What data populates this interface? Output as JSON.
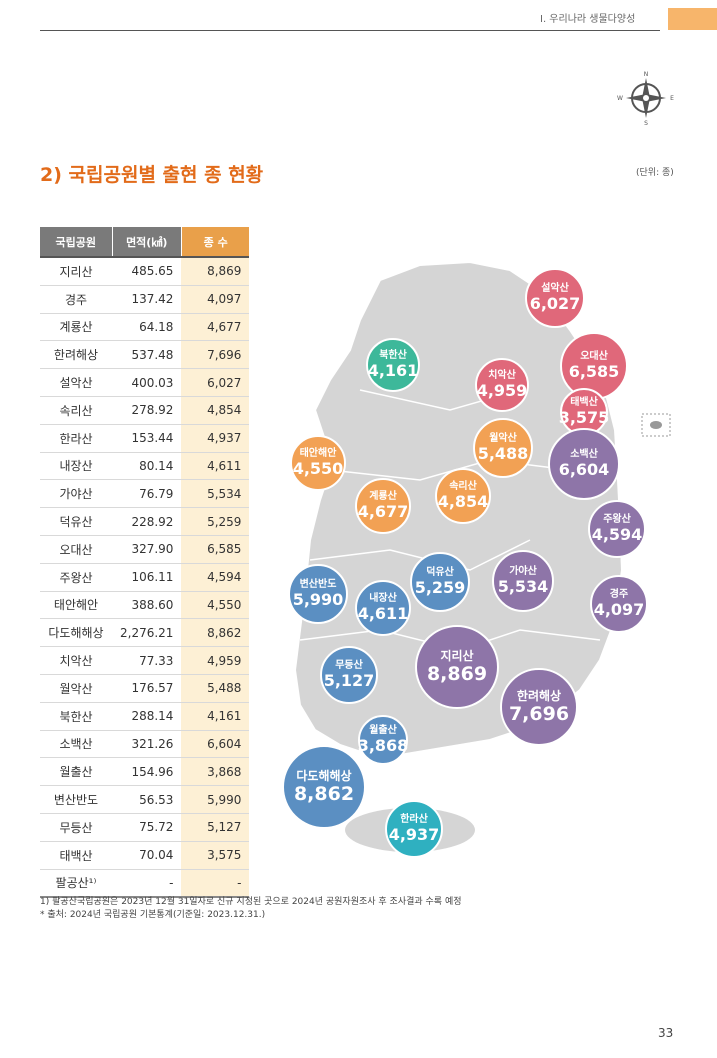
{
  "header": {
    "section": "Ⅰ. 우리나라 생물다양성"
  },
  "compass": {
    "n": "N",
    "s": "S",
    "e": "E",
    "w": "W"
  },
  "title": "2) 국립공원별 출현 종 현황",
  "unit": "(단위: 종)",
  "table": {
    "headers": [
      "국립공원",
      "면적(㎢)",
      "종 수"
    ],
    "rows": [
      {
        "name": "지리산",
        "area": "485.65",
        "species": "8,869"
      },
      {
        "name": "경주",
        "area": "137.42",
        "species": "4,097"
      },
      {
        "name": "계룡산",
        "area": "64.18",
        "species": "4,677"
      },
      {
        "name": "한려해상",
        "area": "537.48",
        "species": "7,696"
      },
      {
        "name": "설악산",
        "area": "400.03",
        "species": "6,027"
      },
      {
        "name": "속리산",
        "area": "278.92",
        "species": "4,854"
      },
      {
        "name": "한라산",
        "area": "153.44",
        "species": "4,937"
      },
      {
        "name": "내장산",
        "area": "80.14",
        "species": "4,611"
      },
      {
        "name": "가야산",
        "area": "76.79",
        "species": "5,534"
      },
      {
        "name": "덕유산",
        "area": "228.92",
        "species": "5,259"
      },
      {
        "name": "오대산",
        "area": "327.90",
        "species": "6,585"
      },
      {
        "name": "주왕산",
        "area": "106.11",
        "species": "4,594"
      },
      {
        "name": "태안해안",
        "area": "388.60",
        "species": "4,550"
      },
      {
        "name": "다도해해상",
        "area": "2,276.21",
        "species": "8,862"
      },
      {
        "name": "치악산",
        "area": "77.33",
        "species": "4,959"
      },
      {
        "name": "월악산",
        "area": "176.57",
        "species": "5,488"
      },
      {
        "name": "북한산",
        "area": "288.14",
        "species": "4,161"
      },
      {
        "name": "소백산",
        "area": "321.26",
        "species": "6,604"
      },
      {
        "name": "월출산",
        "area": "154.96",
        "species": "3,868"
      },
      {
        "name": "변산반도",
        "area": "56.53",
        "species": "5,990"
      },
      {
        "name": "무등산",
        "area": "75.72",
        "species": "5,127"
      },
      {
        "name": "태백산",
        "area": "70.04",
        "species": "3,575"
      },
      {
        "name": "팔공산¹⁾",
        "area": "-",
        "species": "-"
      }
    ]
  },
  "map": {
    "colors": {
      "red": "#e0687a",
      "orange": "#f2a154",
      "purple": "#8e75a8",
      "blue": "#5b8fc2",
      "green": "#3db89a",
      "teal": "#2fb0c0",
      "land": "#d5d5d5"
    },
    "bubbles": [
      {
        "name": "설악산",
        "value": "6,027",
        "color": "red"
      },
      {
        "name": "오대산",
        "value": "6,585",
        "color": "red"
      },
      {
        "name": "북한산",
        "value": "4,161",
        "color": "green"
      },
      {
        "name": "치악산",
        "value": "4,959",
        "color": "red"
      },
      {
        "name": "태백산",
        "value": "3,575",
        "color": "red"
      },
      {
        "name": "태안해안",
        "value": "4,550",
        "color": "orange"
      },
      {
        "name": "월악산",
        "value": "5,488",
        "color": "orange"
      },
      {
        "name": "소백산",
        "value": "6,604",
        "color": "purple"
      },
      {
        "name": "계룡산",
        "value": "4,677",
        "color": "orange"
      },
      {
        "name": "속리산",
        "value": "4,854",
        "color": "orange"
      },
      {
        "name": "주왕산",
        "value": "4,594",
        "color": "purple"
      },
      {
        "name": "변산반도",
        "value": "5,990",
        "color": "blue"
      },
      {
        "name": "덕유산",
        "value": "5,259",
        "color": "blue"
      },
      {
        "name": "가야산",
        "value": "5,534",
        "color": "purple"
      },
      {
        "name": "경주",
        "value": "4,097",
        "color": "purple"
      },
      {
        "name": "내장산",
        "value": "4,611",
        "color": "blue"
      },
      {
        "name": "무등산",
        "value": "5,127",
        "color": "blue"
      },
      {
        "name": "지리산",
        "value": "8,869",
        "color": "purple"
      },
      {
        "name": "한려해상",
        "value": "7,696",
        "color": "purple"
      },
      {
        "name": "월출산",
        "value": "3,868",
        "color": "blue"
      },
      {
        "name": "다도해해상",
        "value": "8,862",
        "color": "blue"
      },
      {
        "name": "한라산",
        "value": "4,937",
        "color": "teal"
      }
    ]
  },
  "footnotes": [
    "1) 팔공산국립공원은 2023년 12월 31일자로 신규 지정된 곳으로 2024년 공원자원조사 후 조사결과 수록 예정",
    "* 출처: 2024년 국립공원 기본통계(기준일: 2023.12.31.)"
  ],
  "page_number": "33"
}
